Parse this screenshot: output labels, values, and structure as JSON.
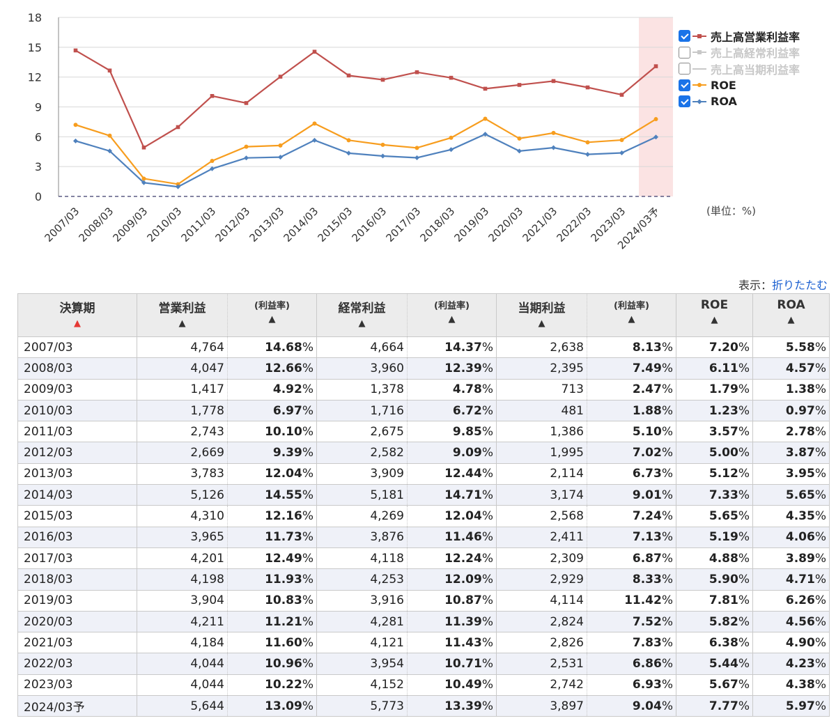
{
  "chart_data": {
    "type": "line",
    "categories": [
      "2007/03",
      "2008/03",
      "2009/03",
      "2010/03",
      "2011/03",
      "2012/03",
      "2013/03",
      "2014/03",
      "2015/03",
      "2016/03",
      "2017/03",
      "2018/03",
      "2019/03",
      "2020/03",
      "2021/03",
      "2022/03",
      "2023/03",
      "2024/03予"
    ],
    "ylim": [
      0,
      18
    ],
    "yticks": [
      "0",
      "3",
      "6",
      "9",
      "12",
      "15",
      "18"
    ],
    "unit": "(単位：%)",
    "forecast_highlight_category": "2024/03予",
    "grid": true,
    "legend_position": "right",
    "series": [
      {
        "name": "売上高営業利益率",
        "color": "#c0504d",
        "visible": true,
        "marker": "square",
        "values": [
          14.68,
          12.66,
          4.92,
          6.97,
          10.1,
          9.39,
          12.04,
          14.55,
          12.16,
          11.73,
          12.49,
          11.93,
          10.83,
          11.21,
          11.6,
          10.96,
          10.22,
          13.09
        ]
      },
      {
        "name": "売上高経常利益率",
        "color": "#c8c8c8",
        "visible": false,
        "marker": "triangle",
        "values": [
          14.37,
          12.39,
          4.78,
          6.72,
          9.85,
          9.09,
          12.44,
          14.71,
          12.04,
          11.46,
          12.24,
          12.09,
          10.87,
          11.39,
          11.43,
          10.71,
          10.49,
          13.39
        ]
      },
      {
        "name": "売上高当期利益率",
        "color": "#c8c8c8",
        "visible": false,
        "marker": "none",
        "values": [
          8.13,
          7.49,
          2.47,
          1.88,
          5.1,
          7.02,
          6.73,
          9.01,
          7.24,
          7.13,
          6.87,
          8.33,
          11.42,
          7.52,
          7.83,
          6.86,
          6.93,
          9.04
        ]
      },
      {
        "name": "ROE",
        "color": "#f79d1e",
        "visible": true,
        "marker": "circle",
        "values": [
          7.2,
          6.11,
          1.79,
          1.23,
          3.57,
          5.0,
          5.12,
          7.33,
          5.65,
          5.19,
          4.88,
          5.9,
          7.81,
          5.82,
          6.38,
          5.44,
          5.67,
          7.77
        ]
      },
      {
        "name": "ROA",
        "color": "#4f81bd",
        "visible": true,
        "marker": "diamond",
        "values": [
          5.58,
          4.57,
          1.38,
          0.97,
          2.78,
          3.87,
          3.95,
          5.65,
          4.35,
          4.06,
          3.89,
          4.71,
          6.26,
          4.56,
          4.9,
          4.23,
          4.38,
          5.97
        ]
      }
    ]
  },
  "display": {
    "label": "表示：",
    "link": "折りたたむ"
  },
  "table": {
    "headers": {
      "period": "決算期",
      "operating": "営業利益",
      "margin": "(利益率)",
      "ordinary": "経常利益",
      "net": "当期利益",
      "roe": "ROE",
      "roa": "ROA",
      "arrow_up": "▲"
    },
    "rows": [
      {
        "period": "2007/03",
        "op": "4,764",
        "op_m": "14.68",
        "ord": "4,664",
        "ord_m": "14.37",
        "net": "2,638",
        "net_m": "8.13",
        "roe": "7.20",
        "roa": "5.58"
      },
      {
        "period": "2008/03",
        "op": "4,047",
        "op_m": "12.66",
        "ord": "3,960",
        "ord_m": "12.39",
        "net": "2,395",
        "net_m": "7.49",
        "roe": "6.11",
        "roa": "4.57"
      },
      {
        "period": "2009/03",
        "op": "1,417",
        "op_m": "4.92",
        "ord": "1,378",
        "ord_m": "4.78",
        "net": "713",
        "net_m": "2.47",
        "roe": "1.79",
        "roa": "1.38"
      },
      {
        "period": "2010/03",
        "op": "1,778",
        "op_m": "6.97",
        "ord": "1,716",
        "ord_m": "6.72",
        "net": "481",
        "net_m": "1.88",
        "roe": "1.23",
        "roa": "0.97"
      },
      {
        "period": "2011/03",
        "op": "2,743",
        "op_m": "10.10",
        "ord": "2,675",
        "ord_m": "9.85",
        "net": "1,386",
        "net_m": "5.10",
        "roe": "3.57",
        "roa": "2.78"
      },
      {
        "period": "2012/03",
        "op": "2,669",
        "op_m": "9.39",
        "ord": "2,582",
        "ord_m": "9.09",
        "net": "1,995",
        "net_m": "7.02",
        "roe": "5.00",
        "roa": "3.87"
      },
      {
        "period": "2013/03",
        "op": "3,783",
        "op_m": "12.04",
        "ord": "3,909",
        "ord_m": "12.44",
        "net": "2,114",
        "net_m": "6.73",
        "roe": "5.12",
        "roa": "3.95"
      },
      {
        "period": "2014/03",
        "op": "5,126",
        "op_m": "14.55",
        "ord": "5,181",
        "ord_m": "14.71",
        "net": "3,174",
        "net_m": "9.01",
        "roe": "7.33",
        "roa": "5.65"
      },
      {
        "period": "2015/03",
        "op": "4,310",
        "op_m": "12.16",
        "ord": "4,269",
        "ord_m": "12.04",
        "net": "2,568",
        "net_m": "7.24",
        "roe": "5.65",
        "roa": "4.35"
      },
      {
        "period": "2016/03",
        "op": "3,965",
        "op_m": "11.73",
        "ord": "3,876",
        "ord_m": "11.46",
        "net": "2,411",
        "net_m": "7.13",
        "roe": "5.19",
        "roa": "4.06"
      },
      {
        "period": "2017/03",
        "op": "4,201",
        "op_m": "12.49",
        "ord": "4,118",
        "ord_m": "12.24",
        "net": "2,309",
        "net_m": "6.87",
        "roe": "4.88",
        "roa": "3.89"
      },
      {
        "period": "2018/03",
        "op": "4,198",
        "op_m": "11.93",
        "ord": "4,253",
        "ord_m": "12.09",
        "net": "2,929",
        "net_m": "8.33",
        "roe": "5.90",
        "roa": "4.71"
      },
      {
        "period": "2019/03",
        "op": "3,904",
        "op_m": "10.83",
        "ord": "3,916",
        "ord_m": "10.87",
        "net": "4,114",
        "net_m": "11.42",
        "roe": "7.81",
        "roa": "6.26"
      },
      {
        "period": "2020/03",
        "op": "4,211",
        "op_m": "11.21",
        "ord": "4,281",
        "ord_m": "11.39",
        "net": "2,824",
        "net_m": "7.52",
        "roe": "5.82",
        "roa": "4.56"
      },
      {
        "period": "2021/03",
        "op": "4,184",
        "op_m": "11.60",
        "ord": "4,121",
        "ord_m": "11.43",
        "net": "2,826",
        "net_m": "7.83",
        "roe": "6.38",
        "roa": "4.90"
      },
      {
        "period": "2022/03",
        "op": "4,044",
        "op_m": "10.96",
        "ord": "3,954",
        "ord_m": "10.71",
        "net": "2,531",
        "net_m": "6.86",
        "roe": "5.44",
        "roa": "4.23"
      },
      {
        "period": "2023/03",
        "op": "4,044",
        "op_m": "10.22",
        "ord": "4,152",
        "ord_m": "10.49",
        "net": "2,742",
        "net_m": "6.93",
        "roe": "5.67",
        "roa": "4.38"
      },
      {
        "period": "2024/03予",
        "op": "5,644",
        "op_m": "13.09",
        "ord": "5,773",
        "ord_m": "13.39",
        "net": "3,897",
        "net_m": "9.04",
        "roe": "7.77",
        "roa": "5.97"
      }
    ]
  }
}
